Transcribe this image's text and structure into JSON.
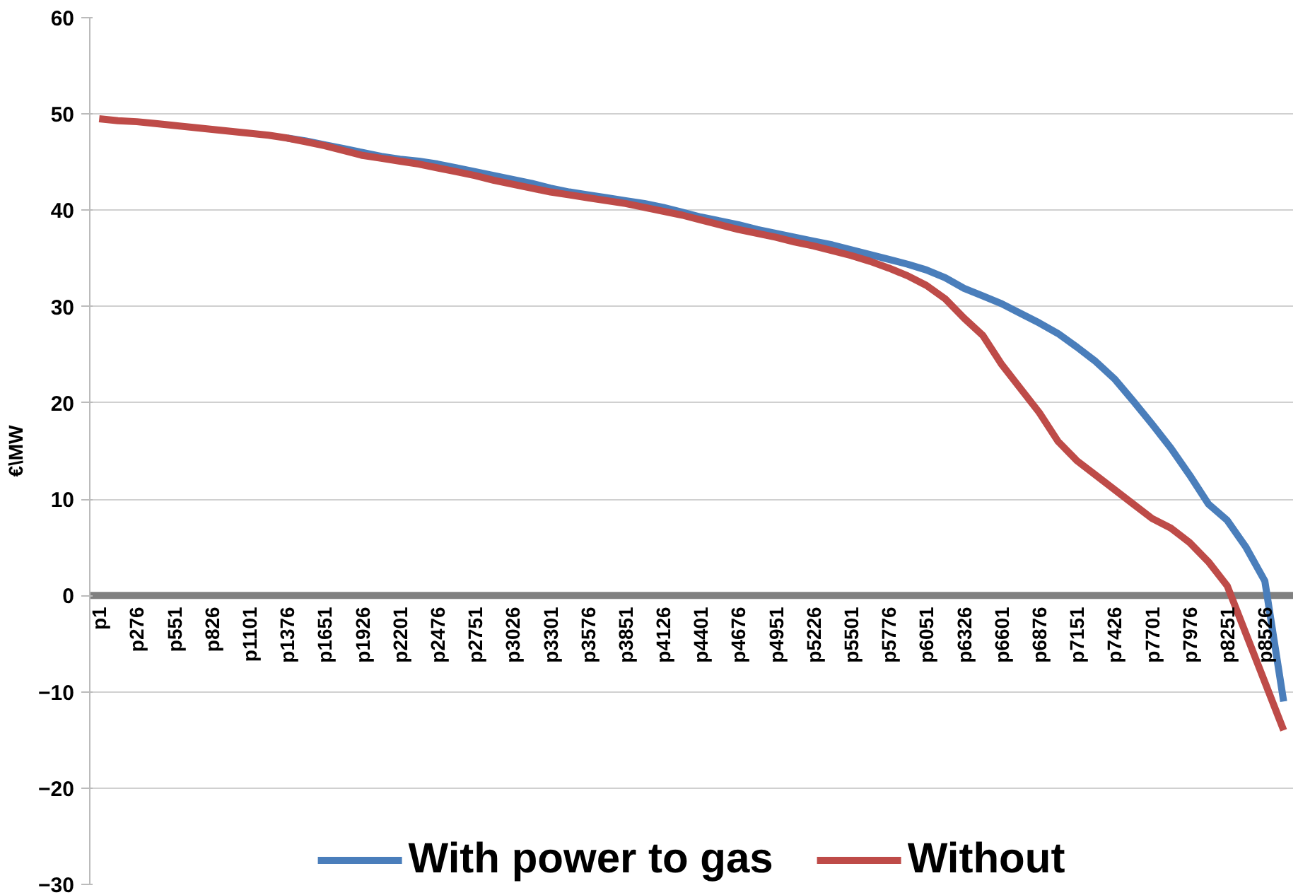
{
  "chart_data": {
    "type": "line",
    "ylabel": "€\\MW",
    "categories": [
      "p1",
      null,
      "p276",
      null,
      "p551",
      null,
      "p826",
      null,
      "p1101",
      null,
      "p1376",
      null,
      "p1651",
      null,
      "p1926",
      null,
      "p2201",
      null,
      "p2476",
      null,
      "p2751",
      null,
      "p3026",
      null,
      "p3301",
      null,
      "p3576",
      null,
      "p3851",
      null,
      "p4126",
      null,
      "p4401",
      null,
      "p4676",
      null,
      "p4951",
      null,
      "p5226",
      null,
      "p5501",
      null,
      "p5776",
      null,
      "p6051",
      null,
      "p6326",
      null,
      "p6601",
      null,
      "p6876",
      null,
      "p7151",
      null,
      "p7426",
      null,
      "p7701",
      null,
      "p7976",
      null,
      "p8251",
      null,
      "p8526",
      null
    ],
    "ylim": [
      -30,
      60
    ],
    "yticks": [
      -30,
      -20,
      -10,
      0,
      10,
      20,
      30,
      40,
      50,
      60
    ],
    "grid": "y",
    "legend": "bottom",
    "line_style": "solid",
    "series": [
      {
        "name": "With power to gas",
        "color": "#4a7ebb",
        "values": [
          null,
          null,
          null,
          null,
          null,
          null,
          null,
          null,
          null,
          null,
          47.5,
          47.2,
          46.8,
          46.4,
          46.0,
          45.6,
          45.3,
          45.1,
          44.8,
          44.4,
          44.0,
          43.6,
          43.2,
          42.8,
          42.3,
          41.9,
          41.6,
          41.3,
          41.0,
          40.7,
          40.3,
          39.8,
          39.3,
          38.9,
          38.5,
          38.0,
          37.6,
          37.2,
          36.8,
          36.4,
          35.9,
          35.4,
          34.9,
          34.4,
          33.8,
          33.0,
          31.9,
          31.1,
          30.3,
          29.3,
          28.3,
          27.2,
          25.8,
          24.3,
          22.5,
          20.2,
          17.8,
          15.3,
          12.5,
          9.5,
          7.8,
          5,
          1.5,
          -11
        ]
      },
      {
        "name": "Without",
        "color": "#be4b48",
        "values": [
          49.5,
          49.3,
          49.2,
          49.0,
          48.8,
          48.6,
          48.4,
          48.2,
          48.0,
          47.8,
          47.5,
          47.1,
          46.7,
          46.2,
          45.7,
          45.4,
          45.1,
          44.8,
          44.4,
          44.0,
          43.6,
          43.1,
          42.7,
          42.3,
          41.9,
          41.6,
          41.3,
          41.0,
          40.7,
          40.3,
          39.9,
          39.5,
          39.0,
          38.5,
          38.0,
          37.6,
          37.2,
          36.7,
          36.3,
          35.8,
          35.3,
          34.7,
          34.0,
          33.2,
          32.2,
          30.8,
          28.8,
          27.0,
          24.0,
          21.5,
          19.0,
          16.0,
          14.0,
          12.5,
          11.0,
          9.5,
          8.0,
          7.0,
          5.5,
          3.5,
          1.0,
          -4.0,
          -9.0,
          -14
        ]
      }
    ]
  }
}
